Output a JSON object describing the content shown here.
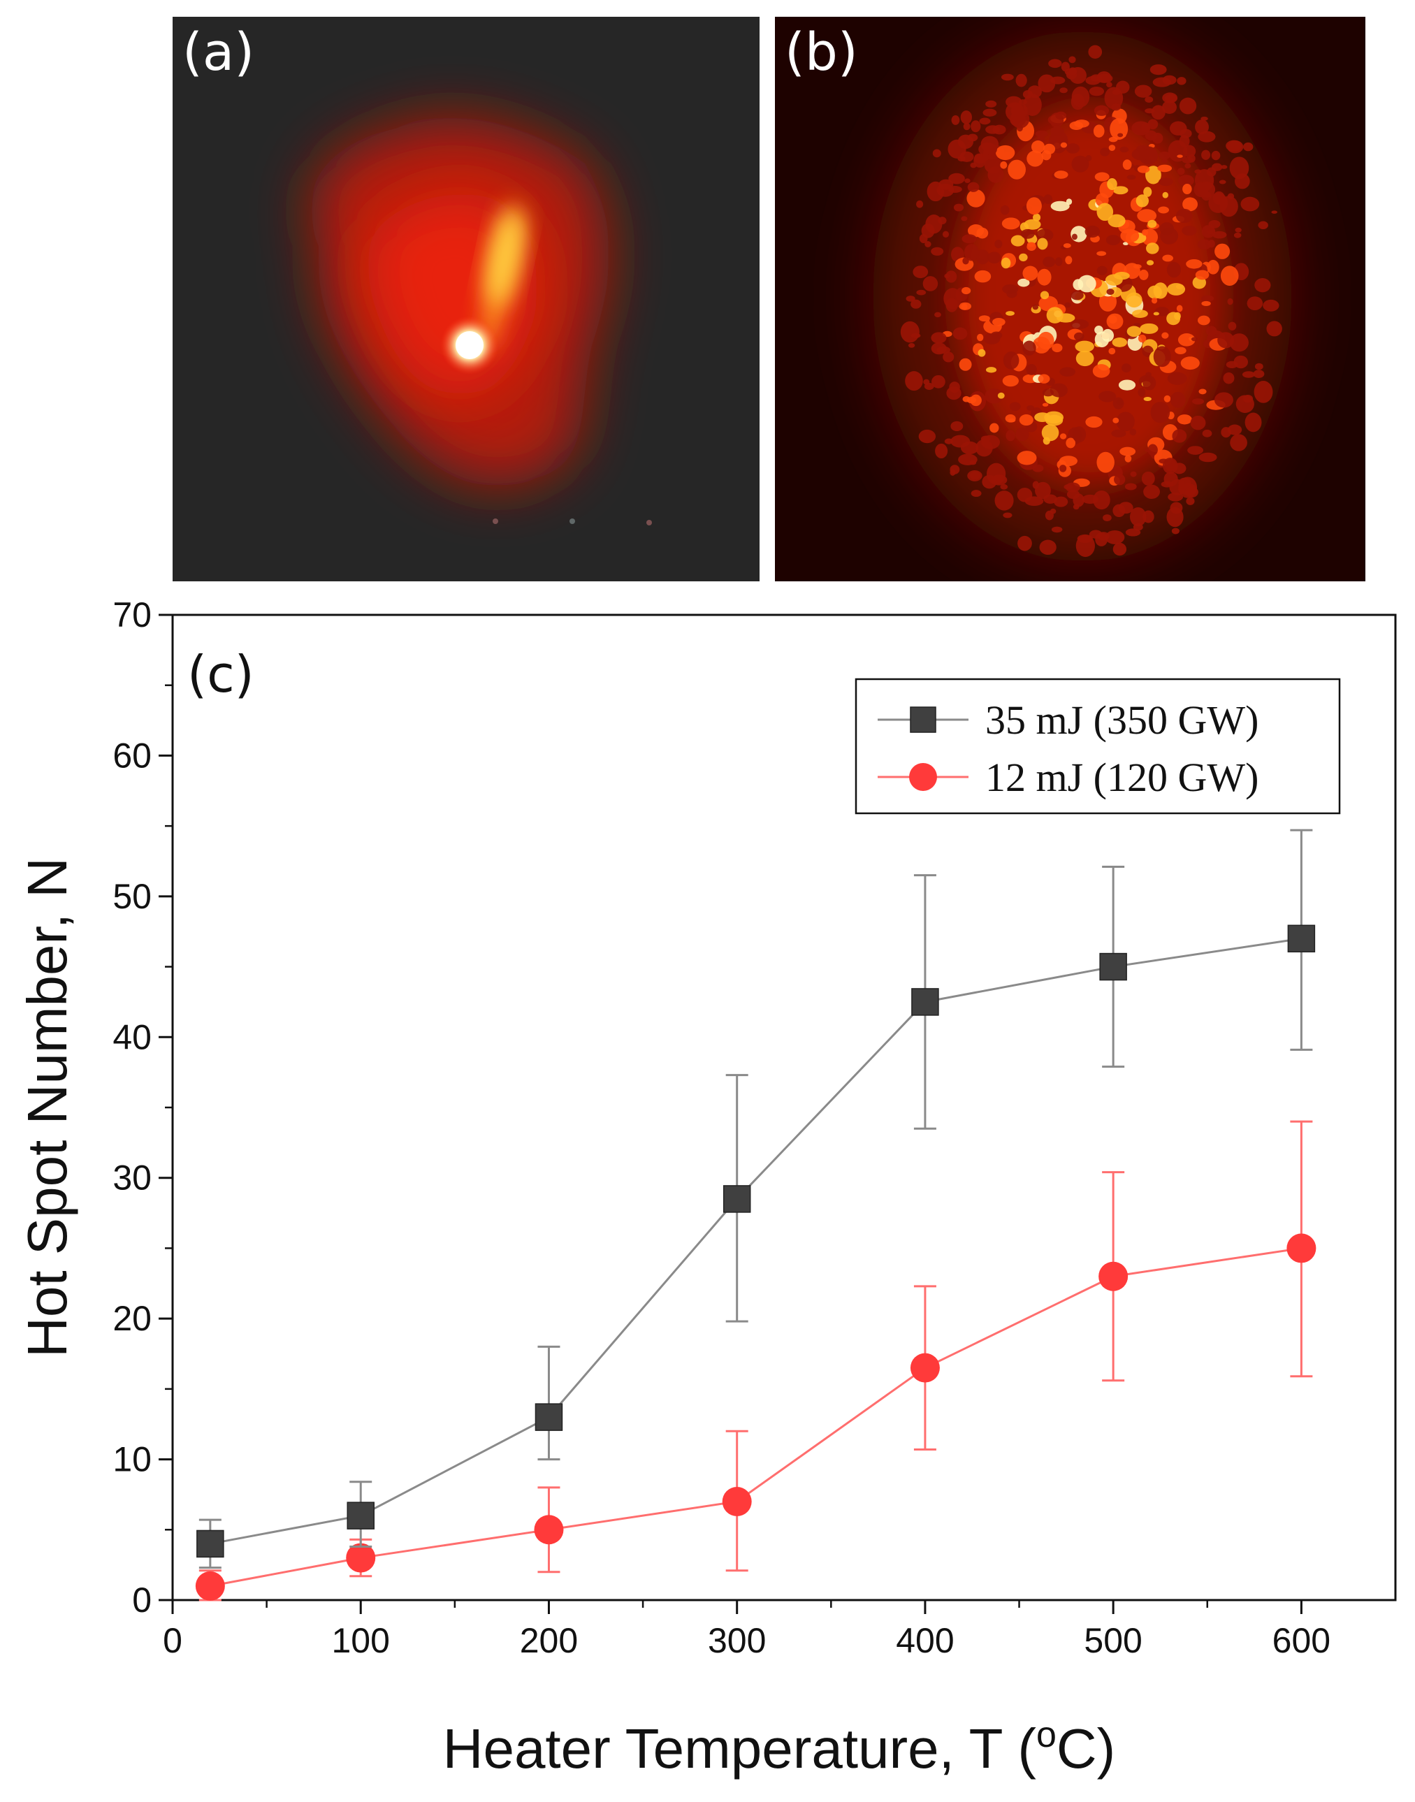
{
  "panels": {
    "a": {
      "label": "(a)"
    },
    "b": {
      "label": "(b)"
    }
  },
  "chart_data": {
    "type": "line",
    "panel_label": "(c)",
    "xlabel": "Heater Temperature, T (",
    "xlabel_sup": "o",
    "xlabel_tail": "C)",
    "ylabel": "Hot Spot Number, N",
    "xlim": [
      0,
      650
    ],
    "ylim": [
      0,
      70
    ],
    "xticks": [
      0,
      100,
      200,
      300,
      400,
      500,
      600
    ],
    "yticks": [
      0,
      10,
      20,
      30,
      40,
      50,
      60,
      70
    ],
    "x": [
      20,
      100,
      200,
      300,
      400,
      500,
      600
    ],
    "series": [
      {
        "name": "35 mJ (350 GW)",
        "marker": "square",
        "color": "#404040",
        "line_color": "#8a8a8a",
        "values": [
          4,
          6,
          13,
          28.5,
          42.5,
          45,
          47
        ],
        "err_low": [
          2.3,
          3.8,
          10,
          19.8,
          33.5,
          37.9,
          39.1
        ],
        "err_high": [
          5.7,
          8.4,
          18,
          37.3,
          51.5,
          52.1,
          54.7
        ]
      },
      {
        "name": "12 mJ (120 GW)",
        "marker": "circle",
        "color": "#ff3a3a",
        "line_color": "#ff6e6e",
        "values": [
          1,
          3,
          5,
          7,
          16.5,
          23,
          25
        ],
        "err_low": [
          0,
          1.7,
          2,
          2.1,
          10.7,
          15.6,
          15.9
        ],
        "err_high": [
          2.1,
          4.3,
          8,
          12,
          22.3,
          30.4,
          34
        ]
      }
    ]
  }
}
